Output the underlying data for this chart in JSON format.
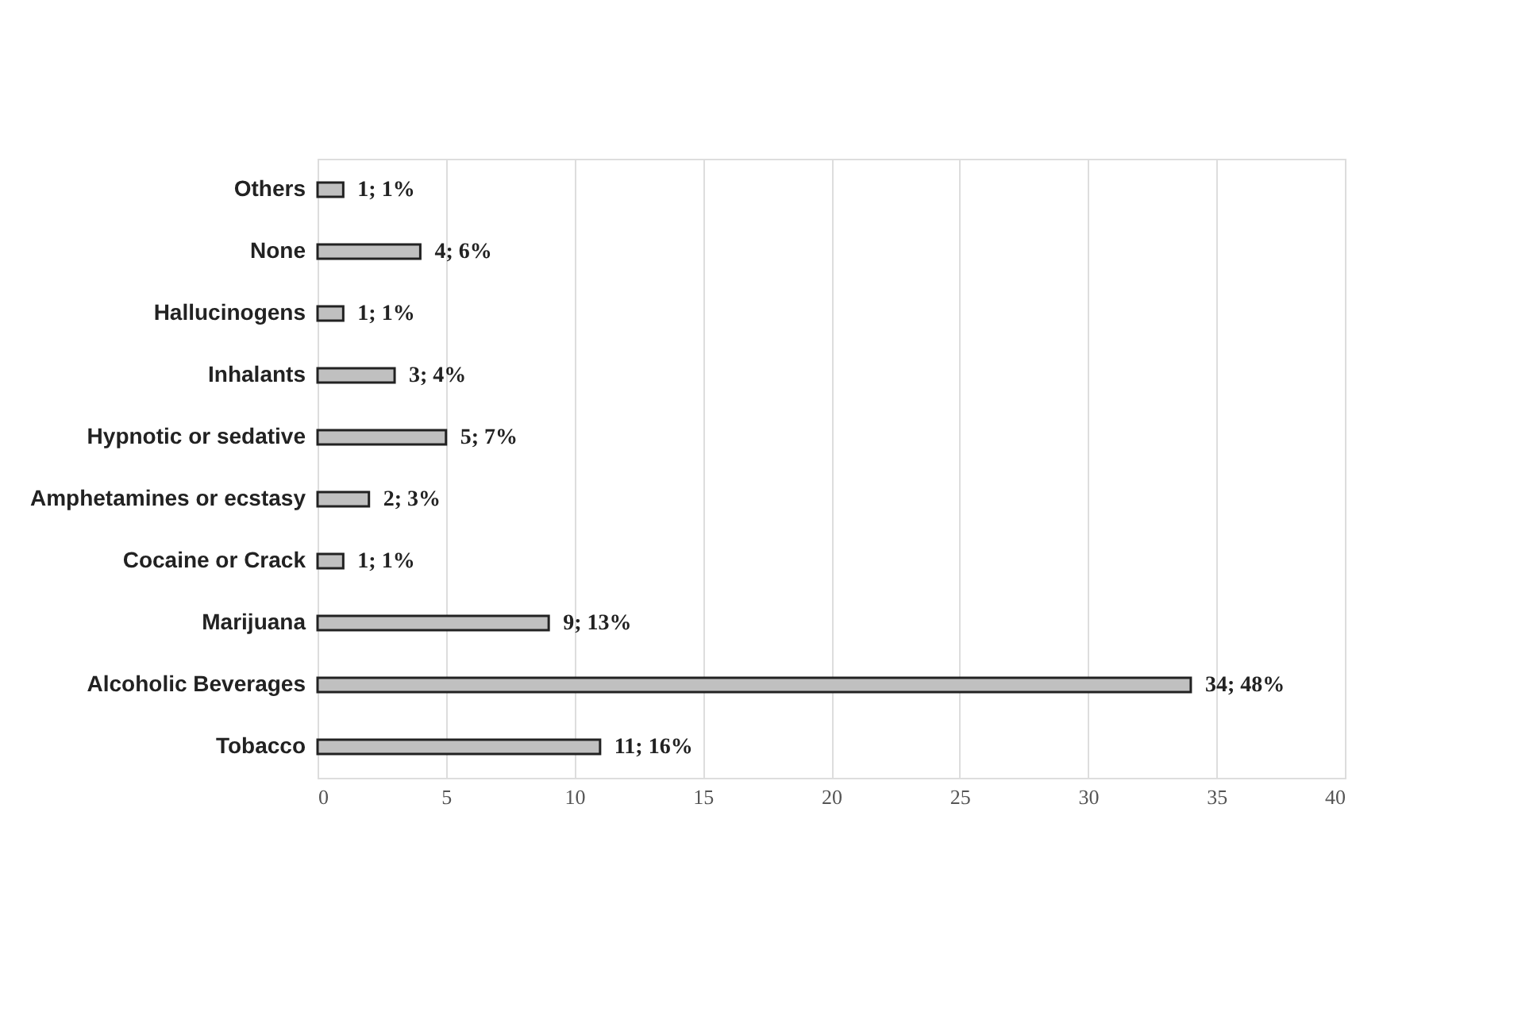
{
  "chart_data": {
    "type": "bar",
    "orientation": "horizontal",
    "categories": [
      "Others",
      "None",
      "Hallucinogens",
      "Inhalants",
      "Hypnotic or sedative",
      "Amphetamines or ecstasy",
      "Cocaine or Crack",
      "Marijuana",
      "Alcoholic Beverages",
      "Tobacco"
    ],
    "values": [
      1,
      4,
      1,
      3,
      5,
      2,
      1,
      9,
      34,
      11
    ],
    "value_labels": [
      "1; 1%",
      "4; 6%",
      "1; 1%",
      "3; 4%",
      "5; 7%",
      "2; 3%",
      "1; 1%",
      "9; 13%",
      "34; 48%",
      "11; 16%"
    ],
    "color": "#c0c0c0",
    "xlim": [
      0,
      40
    ],
    "xticks": [
      0,
      5,
      10,
      15,
      20,
      25,
      30,
      35,
      40
    ],
    "grid": "x"
  }
}
